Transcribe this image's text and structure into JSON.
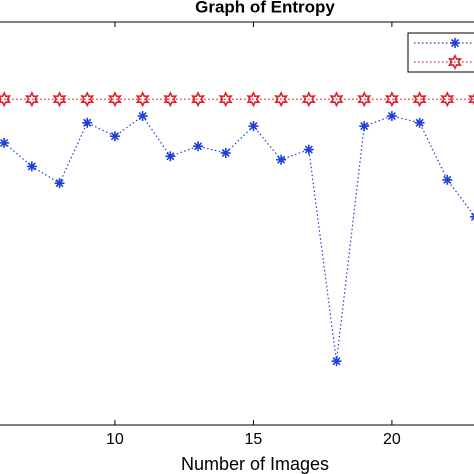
{
  "chart_data": {
    "type": "line",
    "title": "Graph of Entropy",
    "x_label": "Number of Images",
    "x": [
      6,
      7,
      8,
      9,
      10,
      11,
      12,
      13,
      14,
      15,
      16,
      17,
      18,
      19,
      20,
      21,
      22,
      23
    ],
    "series": [
      {
        "color": "#1f3fd6",
        "marker": "asterisk",
        "values": [
          7.84,
          7.77,
          7.72,
          7.9,
          7.86,
          7.92,
          7.8,
          7.83,
          7.81,
          7.89,
          7.79,
          7.82,
          7.19,
          7.89,
          7.92,
          7.9,
          7.73,
          7.62
        ]
      },
      {
        "color": "#e0202a",
        "marker": "hexagram",
        "values": [
          7.97,
          7.97,
          7.97,
          7.97,
          7.97,
          7.97,
          7.97,
          7.97,
          7.97,
          7.97,
          7.97,
          7.97,
          7.97,
          7.97,
          7.97,
          7.97,
          7.97,
          7.97
        ]
      }
    ],
    "xlim": [
      5.85,
      23
    ],
    "ylim": [
      7.0,
      8.2
    ],
    "xticks": [
      10,
      15,
      20
    ],
    "legend": "top-right"
  }
}
